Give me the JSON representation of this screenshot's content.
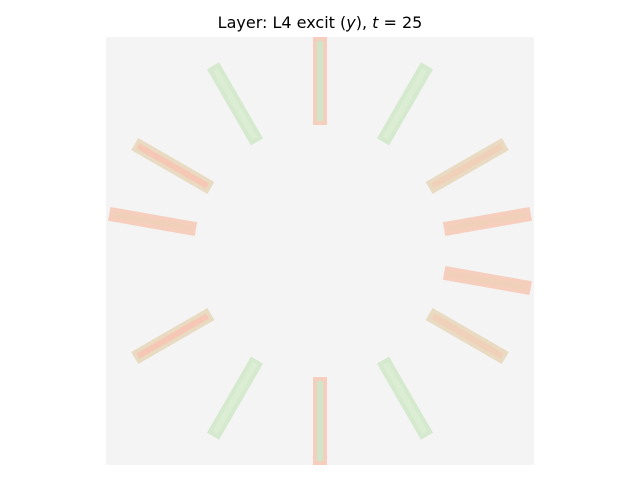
{
  "figure": {
    "title_prefix": "Layer: L4 excit (",
    "title_var": "y",
    "title_mid": "), ",
    "title_t": "t",
    "title_eq": " = 25"
  },
  "image": {
    "background": "#f4f4f4",
    "colors": {
      "salmon": "#f6c7b4",
      "peach": "#f1d0b9",
      "green": "#cfe6c8",
      "mint": "#dbeed3",
      "tan": "#e6d5b8"
    }
  }
}
